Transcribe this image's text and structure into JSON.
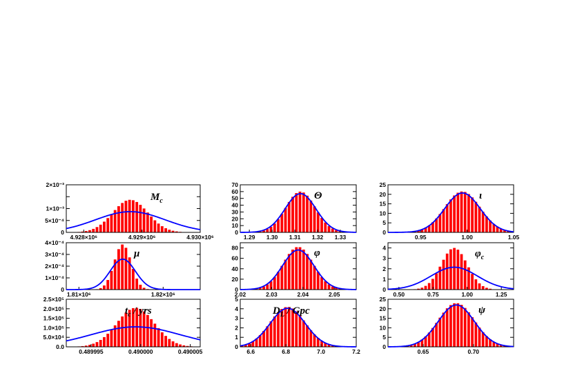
{
  "chart_data": [
    {
      "type": "bar",
      "label": "M",
      "label_sub": "c",
      "x_range": [
        4927700,
        4930000
      ],
      "y_range": [
        0,
        0.002
      ],
      "x_ticks": [
        {
          "v": 4928000,
          "t": "4.928×10⁶"
        },
        {
          "v": 4929000,
          "t": "4.929×10⁶"
        },
        {
          "v": 4930000,
          "t": "4.930×10⁶"
        }
      ],
      "y_ticks": [
        {
          "v": 0,
          "t": "0"
        },
        {
          "v": 0.0005,
          "t": "5×10⁻⁴"
        },
        {
          "v": 0.001,
          "t": "1×10⁻³"
        },
        {
          "v": 0.0015,
          "t": ""
        },
        {
          "v": 0.002,
          "t": "2×10⁻³"
        }
      ],
      "hist": {
        "mean": 4928800,
        "sd": 300,
        "peak": 0.00137
      },
      "fit": {
        "mean": 4928800,
        "sd": 600,
        "peak": 0.00087
      },
      "colors": {
        "bars": "#ff0000",
        "fit": "#0000ff"
      }
    },
    {
      "type": "bar",
      "label": "Θ",
      "label_sub": "",
      "x_range": [
        1.286,
        1.337
      ],
      "y_range": [
        0,
        70
      ],
      "x_ticks": [
        {
          "v": 1.29,
          "t": "1.29"
        },
        {
          "v": 1.3,
          "t": "1.30"
        },
        {
          "v": 1.31,
          "t": "1.31"
        },
        {
          "v": 1.32,
          "t": "1.32"
        },
        {
          "v": 1.33,
          "t": "1.33"
        }
      ],
      "y_ticks": [
        {
          "v": 0,
          "t": "0"
        },
        {
          "v": 10,
          "t": "10"
        },
        {
          "v": 20,
          "t": "20"
        },
        {
          "v": 30,
          "t": "30"
        },
        {
          "v": 40,
          "t": "40"
        },
        {
          "v": 50,
          "t": "50"
        },
        {
          "v": 60,
          "t": "60"
        },
        {
          "v": 70,
          "t": "70"
        }
      ],
      "hist": {
        "mean": 1.3125,
        "sd": 0.0065,
        "peak": 60
      },
      "fit": {
        "mean": 1.3125,
        "sd": 0.0068,
        "peak": 57
      },
      "colors": {
        "bars": "#ff0000",
        "fit": "#0000ff"
      }
    },
    {
      "type": "bar",
      "label": "ι",
      "label_sub": "",
      "x_range": [
        0.915,
        1.05
      ],
      "y_range": [
        0,
        25
      ],
      "x_ticks": [
        {
          "v": 0.95,
          "t": "0.95"
        },
        {
          "v": 1.0,
          "t": "1.00"
        },
        {
          "v": 1.05,
          "t": "1.05"
        }
      ],
      "y_ticks": [
        {
          "v": 0,
          "t": "0"
        },
        {
          "v": 5,
          "t": "5"
        },
        {
          "v": 10,
          "t": "10"
        },
        {
          "v": 15,
          "t": "15"
        },
        {
          "v": 20,
          "t": "20"
        },
        {
          "v": 25,
          "t": "25"
        }
      ],
      "hist": {
        "mean": 0.995,
        "sd": 0.019,
        "peak": 21.5
      },
      "fit": {
        "mean": 0.995,
        "sd": 0.019,
        "peak": 20.7
      },
      "colors": {
        "bars": "#ff0000",
        "fit": "#0000ff"
      }
    },
    {
      "type": "bar",
      "label": "μ",
      "label_sub": "",
      "x_range": [
        1808500,
        1824400
      ],
      "y_range": [
        0,
        0.0004
      ],
      "x_ticks": [
        {
          "v": 1810000,
          "t": "1.81×10⁶"
        },
        {
          "v": 1820000,
          "t": "1.82×10⁶"
        }
      ],
      "y_ticks": [
        {
          "v": 0,
          "t": "0"
        },
        {
          "v": 0.0001,
          "t": "1×10⁻⁴"
        },
        {
          "v": 0.0002,
          "t": "2×10⁻⁴"
        },
        {
          "v": 0.0003,
          "t": "3×10⁻⁴"
        },
        {
          "v": 0.0004,
          "t": "4×10⁻⁴"
        }
      ],
      "hist": {
        "mean": 1815200,
        "sd": 1000,
        "peak": 0.000385
      },
      "fit": {
        "mean": 1815200,
        "sd": 1500,
        "peak": 0.00026
      },
      "colors": {
        "bars": "#ff0000",
        "fit": "#0000ff"
      }
    },
    {
      "type": "bar",
      "label": "φ",
      "label_sub": "",
      "x_range": [
        2.02,
        2.057
      ],
      "y_range": [
        0,
        90
      ],
      "x_ticks": [
        {
          "v": 2.02,
          "t": "2.02"
        },
        {
          "v": 2.03,
          "t": "2.03"
        },
        {
          "v": 2.04,
          "t": "2.04"
        },
        {
          "v": 2.05,
          "t": "2.05"
        }
      ],
      "y_ticks": [
        {
          "v": 0,
          "t": "0"
        },
        {
          "v": 20,
          "t": "20"
        },
        {
          "v": 40,
          "t": "40"
        },
        {
          "v": 60,
          "t": "60"
        },
        {
          "v": 80,
          "t": "80"
        }
      ],
      "hist": {
        "mean": 2.0385,
        "sd": 0.0048,
        "peak": 82
      },
      "fit": {
        "mean": 2.0385,
        "sd": 0.005,
        "peak": 76
      },
      "colors": {
        "bars": "#ff0000",
        "fit": "#0000ff"
      }
    },
    {
      "type": "bar",
      "label": "φ",
      "label_sub": "c",
      "x_range": [
        0.42,
        1.34
      ],
      "y_range": [
        0,
        4.5
      ],
      "x_ticks": [
        {
          "v": 0.5,
          "t": "0.50"
        },
        {
          "v": 0.75,
          "t": "0.75"
        },
        {
          "v": 1.0,
          "t": "1.00"
        },
        {
          "v": 1.25,
          "t": "1.25"
        }
      ],
      "y_ticks": [
        {
          "v": 0,
          "t": "0"
        },
        {
          "v": 1,
          "t": "1"
        },
        {
          "v": 2,
          "t": "2"
        },
        {
          "v": 3,
          "t": "3"
        },
        {
          "v": 4,
          "t": "4"
        }
      ],
      "hist": {
        "mean": 0.905,
        "sd": 0.095,
        "peak": 4.0
      },
      "fit": {
        "mean": 0.905,
        "sd": 0.17,
        "peak": 2.15
      },
      "colors": {
        "bars": "#ff0000",
        "fit": "#0000ff"
      }
    },
    {
      "type": "bar",
      "label": "t",
      "label_sub": "c",
      "label_suffix": " / yrs",
      "x_range": [
        0.4899925,
        0.490006
      ],
      "y_range": [
        0,
        250000
      ],
      "x_ticks": [
        {
          "v": 0.489995,
          "t": "0.489995"
        },
        {
          "v": 0.49,
          "t": "0.490000"
        },
        {
          "v": 0.490005,
          "t": "0.490005"
        }
      ],
      "y_ticks": [
        {
          "v": 0,
          "t": "0.0"
        },
        {
          "v": 50000,
          "t": "5.0×10⁴"
        },
        {
          "v": 100000,
          "t": "1.0×10⁵"
        },
        {
          "v": 150000,
          "t": "1.5×10⁵"
        },
        {
          "v": 200000,
          "t": "2.0×10⁵"
        },
        {
          "v": 250000,
          "t": "2.5×10⁵"
        }
      ],
      "hist": {
        "mean": 0.4899995,
        "sd": 1.9e-06,
        "peak": 205000
      },
      "fit": {
        "mean": 0.4899995,
        "sd": 4.5e-06,
        "peak": 105000
      },
      "colors": {
        "bars": "#ff0000",
        "fit": "#0000ff"
      }
    },
    {
      "type": "bar",
      "label": "D",
      "label_sub": "L",
      "label_suffix": " / Gpc",
      "x_range": [
        6.54,
        7.2
      ],
      "y_range": [
        0,
        5
      ],
      "x_ticks": [
        {
          "v": 6.6,
          "t": "6.6"
        },
        {
          "v": 6.8,
          "t": "6.8"
        },
        {
          "v": 7.0,
          "t": "7.0"
        },
        {
          "v": 7.2,
          "t": "7.2"
        }
      ],
      "y_ticks": [
        {
          "v": 0,
          "t": "0"
        },
        {
          "v": 1,
          "t": "1"
        },
        {
          "v": 2,
          "t": "2"
        },
        {
          "v": 3,
          "t": "3"
        },
        {
          "v": 4,
          "t": "4"
        },
        {
          "v": 5,
          "t": "5"
        }
      ],
      "hist": {
        "mean": 6.81,
        "sd": 0.1,
        "peak": 4.2
      },
      "fit": {
        "mean": 6.81,
        "sd": 0.1,
        "peak": 4.05
      },
      "colors": {
        "bars": "#ff0000",
        "fit": "#0000ff"
      }
    },
    {
      "type": "bar",
      "label": "ψ",
      "label_sub": "",
      "x_range": [
        0.615,
        0.74
      ],
      "y_range": [
        0,
        25
      ],
      "x_ticks": [
        {
          "v": 0.65,
          "t": "0.65"
        },
        {
          "v": 0.7,
          "t": "0.70"
        }
      ],
      "y_ticks": [
        {
          "v": 0,
          "t": "0"
        },
        {
          "v": 5,
          "t": "5"
        },
        {
          "v": 10,
          "t": "10"
        },
        {
          "v": 15,
          "t": "15"
        },
        {
          "v": 20,
          "t": "20"
        },
        {
          "v": 25,
          "t": "25"
        }
      ],
      "hist": {
        "mean": 0.683,
        "sd": 0.018,
        "peak": 23
      },
      "fit": {
        "mean": 0.683,
        "sd": 0.018,
        "peak": 22
      },
      "colors": {
        "bars": "#ff0000",
        "fit": "#0000ff"
      }
    }
  ]
}
